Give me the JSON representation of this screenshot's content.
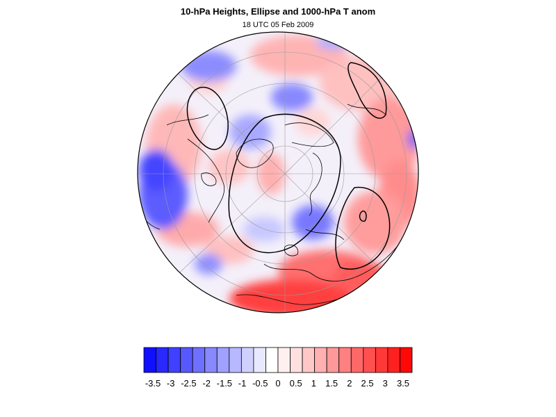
{
  "header": {
    "title": "10-hPa Heights, Ellipse and 1000-hPa T anom",
    "subtitle": "18 UTC 05 Feb 2009"
  },
  "map": {
    "projection": "orthographic-north-polar",
    "field": "1000-hPa temperature anomaly (shaded)",
    "overlays": [
      "coastlines",
      "graticule",
      "10-hPa height contours",
      "ellipse"
    ]
  },
  "colorbar": {
    "colors": [
      "#1010ff",
      "#2828ff",
      "#4040ff",
      "#5858ff",
      "#7070ff",
      "#8888ff",
      "#a0a0ff",
      "#b8b8ff",
      "#d0d0ff",
      "#e8e8ff",
      "#ffffff",
      "#fff0f0",
      "#ffe0e0",
      "#ffc8c8",
      "#ffb0b0",
      "#ff9898",
      "#ff8080",
      "#ff6868",
      "#ff5050",
      "#ff3838",
      "#ff2020",
      "#ff0808"
    ],
    "ticks": [
      "-3.5",
      "-3",
      "-2.5",
      "-2",
      "-1.5",
      "-1",
      "-0.5",
      "0",
      "0.5",
      "1",
      "1.5",
      "2",
      "2.5",
      "3",
      "3.5"
    ]
  }
}
